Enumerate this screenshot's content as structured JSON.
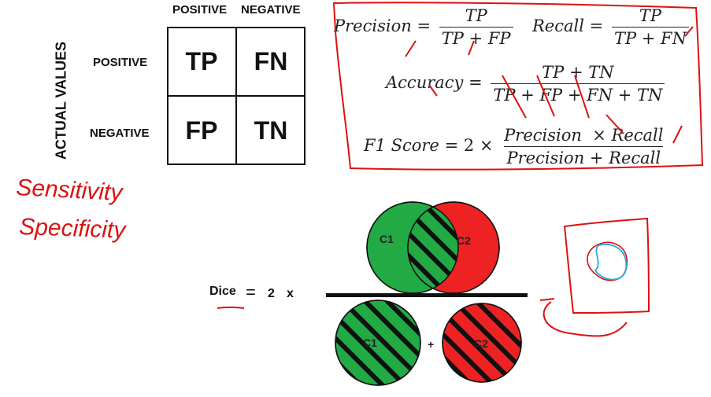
{
  "confusion_matrix": {
    "column_headers": [
      "POSITIVE",
      "NEGATIVE"
    ],
    "row_headers": [
      "POSITIVE",
      "NEGATIVE"
    ],
    "axis_label": "ACTUAL VALUES",
    "cells": [
      "TP",
      "FN",
      "FP",
      "TN"
    ]
  },
  "formulas": {
    "precision": {
      "name": "Precision",
      "eq": "=",
      "num": "TP",
      "den": "TP + FP"
    },
    "recall": {
      "name": "Recall",
      "eq": "=",
      "num": "TP",
      "den": "TP + FN"
    },
    "accuracy": {
      "name": "Accuracy",
      "eq": "=",
      "num": "TP + TN",
      "den": "TP + FP + FN + TN"
    },
    "f1": {
      "name": "F1 Score",
      "eq": "= 2 ×",
      "num": "Precision  × Recall",
      "den": "Precision + Recall"
    }
  },
  "handwritten_notes": [
    "Sensitivity",
    "Specificity"
  ],
  "dice": {
    "label": "Dice",
    "eq": "=",
    "factor": "2",
    "times": "x",
    "plus": "+",
    "c1": "C1",
    "c2": "C2"
  },
  "colors": {
    "green": "#22aa44",
    "red": "#ee2222",
    "ink_red": "#dd1111",
    "ink_blue": "#22aadd",
    "text": "#111111"
  }
}
